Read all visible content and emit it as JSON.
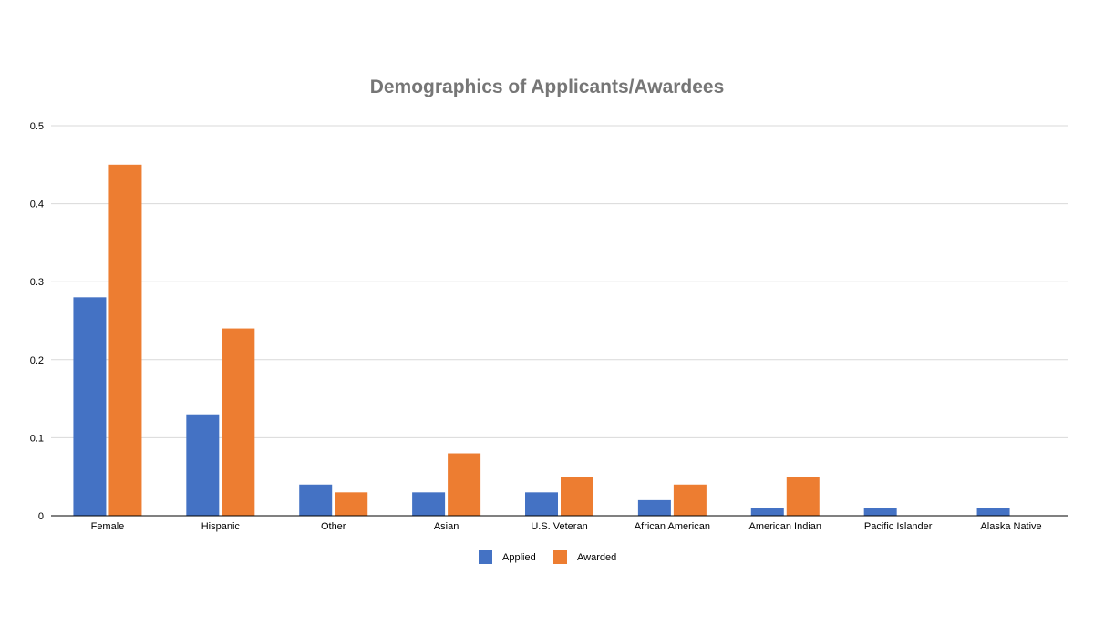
{
  "chart_data": {
    "type": "bar",
    "title": "Demographics of Applicants/Awardees",
    "categories": [
      "Female",
      "Hispanic",
      "Other",
      "Asian",
      "U.S. Veteran",
      "African American",
      "American Indian",
      "Pacific Islander",
      "Alaska Native"
    ],
    "series": [
      {
        "name": "Applied",
        "color": "#4472C4",
        "values": [
          0.28,
          0.13,
          0.04,
          0.03,
          0.03,
          0.02,
          0.01,
          0.01,
          0.01
        ]
      },
      {
        "name": "Awarded",
        "color": "#ED7D31",
        "values": [
          0.45,
          0.24,
          0.03,
          0.08,
          0.05,
          0.04,
          0.05,
          0,
          0
        ]
      }
    ],
    "yticks": [
      "0",
      "0.1",
      "0.2",
      "0.3",
      "0.4",
      "0.5"
    ],
    "ylim": [
      0,
      0.5
    ],
    "grid": true,
    "legend_position": "bottom"
  }
}
